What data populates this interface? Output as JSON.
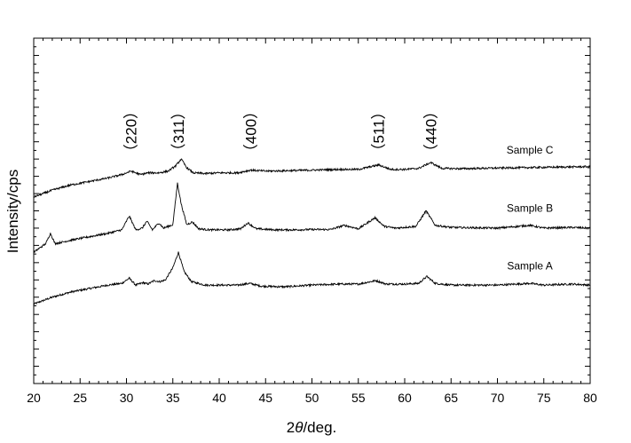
{
  "chart_data": {
    "type": "line",
    "title": "",
    "xlabel": {
      "prefix": "2",
      "theta": "θ",
      "suffix": "/deg."
    },
    "ylabel": "Intensity/cps",
    "xlim": [
      20,
      80
    ],
    "ylim": [
      0,
      100
    ],
    "y_tick_labels": false,
    "x_ticks": [
      20,
      25,
      30,
      35,
      40,
      45,
      50,
      55,
      60,
      65,
      70,
      75,
      80
    ],
    "x_tick_labels": [
      "20",
      "25",
      "30",
      "35",
      "40",
      "45",
      "50",
      "55",
      "60",
      "65",
      "70",
      "75",
      "80"
    ],
    "grid": false,
    "peak_labels": [
      {
        "text": "（220）",
        "x": 30.5
      },
      {
        "text": "（311）",
        "x": 35.6
      },
      {
        "text": "（400）",
        "x": 43.4
      },
      {
        "text": "（511）",
        "x": 57.2
      },
      {
        "text": "（440）",
        "x": 62.8
      }
    ],
    "series": [
      {
        "name": "Sample A",
        "x": [
          20,
          22,
          24,
          26,
          28,
          29.5,
          30.3,
          31.0,
          31.8,
          32.3,
          33.0,
          33.6,
          34.2,
          35.0,
          35.6,
          36.2,
          37.0,
          38.5,
          40,
          42,
          43.3,
          44.5,
          47,
          50,
          53,
          55,
          56.9,
          58,
          60,
          61.5,
          62.4,
          63.3,
          65,
          70,
          73.5,
          75,
          78,
          80
        ],
        "y": [
          23.0,
          25.0,
          26.5,
          27.5,
          28.5,
          29.0,
          30.5,
          28.5,
          29.2,
          28.8,
          29.8,
          29.5,
          30.0,
          33.5,
          38.0,
          32.5,
          29.5,
          28.5,
          28.5,
          28.5,
          29.0,
          28.2,
          28.0,
          28.5,
          28.8,
          28.8,
          29.8,
          28.8,
          28.8,
          29.0,
          31.0,
          29.0,
          28.5,
          28.5,
          29.0,
          28.5,
          28.8,
          28.5
        ]
      },
      {
        "name": "Sample B",
        "x": [
          20,
          21.3,
          21.8,
          22.3,
          24,
          26,
          28,
          29.5,
          30.3,
          31.0,
          31.7,
          32.2,
          32.8,
          33.5,
          34.0,
          35.0,
          35.5,
          35.9,
          36.5,
          37.1,
          37.8,
          39,
          41,
          42.3,
          43.1,
          44.0,
          46,
          48,
          50,
          52,
          53.5,
          55,
          56.8,
          57.8,
          59,
          61.2,
          62.3,
          63.3,
          65,
          70,
          73.5,
          75,
          78,
          80
        ],
        "y": [
          38.0,
          40.5,
          43.5,
          40.5,
          41.5,
          42.5,
          43.5,
          44.5,
          48.5,
          44.5,
          45.0,
          47.0,
          44.5,
          46.5,
          45.0,
          46.0,
          58.0,
          52.0,
          46.0,
          46.8,
          44.8,
          44.5,
          44.5,
          44.8,
          46.5,
          44.8,
          44.5,
          44.5,
          44.6,
          44.6,
          45.8,
          44.8,
          48.0,
          45.5,
          45.0,
          45.5,
          50.0,
          45.8,
          45.2,
          45.0,
          45.8,
          45.0,
          45.2,
          45.0
        ]
      },
      {
        "name": "Sample C",
        "x": [
          20,
          22,
          24,
          26,
          28,
          29.5,
          30.5,
          31.5,
          32.3,
          33.5,
          34.5,
          35.3,
          35.9,
          36.5,
          37.2,
          38.5,
          40,
          42,
          43.4,
          45,
          47,
          50,
          53,
          55,
          57.2,
          58.5,
          60,
          61.5,
          62.8,
          64,
          66,
          70,
          75,
          80
        ],
        "y": [
          54.0,
          56.0,
          57.5,
          58.5,
          59.5,
          60.5,
          61.5,
          60.5,
          61.0,
          61.0,
          61.5,
          63.0,
          65.0,
          62.5,
          61.0,
          60.8,
          61.0,
          61.0,
          61.8,
          61.5,
          61.6,
          61.8,
          62.0,
          62.0,
          63.3,
          62.0,
          62.0,
          62.3,
          64.0,
          62.3,
          62.2,
          62.4,
          62.6,
          62.8
        ]
      }
    ],
    "series_label_x": 73.5,
    "series_label_offset": 4.0
  }
}
